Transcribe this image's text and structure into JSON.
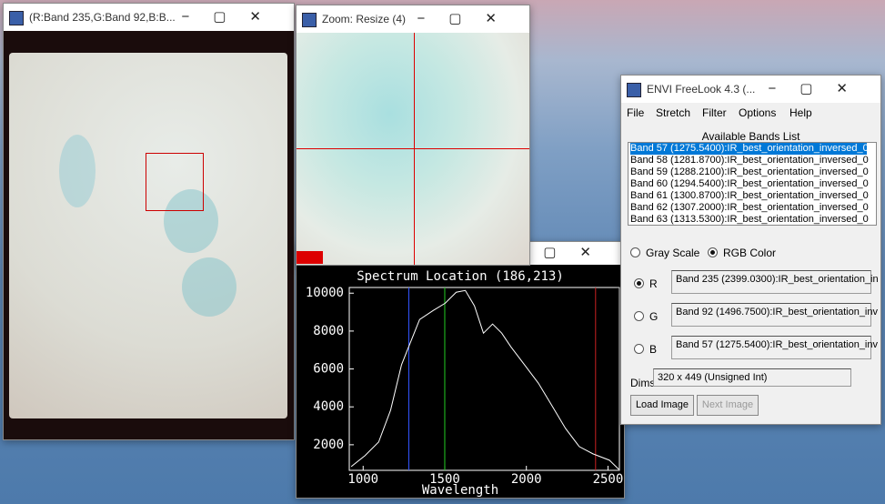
{
  "windows": {
    "image": {
      "title": "(R:Band 235,G:Band 92,B:B..."
    },
    "zoom": {
      "title": "Zoom: Resize (4)"
    },
    "freelook": {
      "title": "ENVI FreeLook 4.3 (...",
      "menu": [
        "File",
        "Stretch",
        "Filter",
        "Options",
        "Help"
      ],
      "bands_list_label": "Available Bands List",
      "bands": [
        "Band 57 (1275.5400):IR_best_orientation_inversed_0",
        "Band 58 (1281.8700):IR_best_orientation_inversed_0",
        "Band 59 (1288.2100):IR_best_orientation_inversed_0",
        "Band 60 (1294.5400):IR_best_orientation_inversed_0",
        "Band 61 (1300.8700):IR_best_orientation_inversed_0",
        "Band 62 (1307.2000):IR_best_orientation_inversed_0",
        "Band 63 (1313.5300):IR_best_orientation_inversed_0"
      ],
      "modes": [
        "Gray Scale",
        "RGB Color"
      ],
      "channels": [
        {
          "label": "R",
          "band": "Band 235 (2399.0300):IR_best_orientation_in"
        },
        {
          "label": "G",
          "band": "Band 92 (1496.7500):IR_best_orientation_inv"
        },
        {
          "label": "B",
          "band": "Band 57 (1275.5400):IR_best_orientation_inv"
        }
      ],
      "dims_label": "Dims",
      "dims": "320 x 449 (Unsigned Int)",
      "buttons": [
        "Load Image",
        "Next Image"
      ]
    }
  },
  "chart_data": {
    "type": "line",
    "title": "Spectrum Location (186,213)",
    "x_label": "Wavelength",
    "color": "#ffffff",
    "x": [
      927,
      1011,
      1095,
      1168,
      1235,
      1279,
      1346,
      1430,
      1503,
      1570,
      1626,
      1682,
      1737,
      1793,
      1849,
      1905,
      1989,
      2073,
      2157,
      2240,
      2324,
      2408,
      2509,
      2566
    ],
    "y": [
      850,
      1425,
      2144,
      3820,
      6215,
      7173,
      8610,
      9090,
      9470,
      10047,
      10143,
      9330,
      7890,
      8370,
      7890,
      7170,
      6215,
      5257,
      4060,
      2860,
      1904,
      1521,
      1185,
      706
    ],
    "xlim": [
      915,
      2570
    ],
    "ylim": [
      650,
      10300
    ],
    "xticks": [
      1000,
      1500,
      2000,
      2500
    ],
    "yticks": [
      2000,
      4000,
      6000,
      8000,
      10000
    ],
    "markers": [
      {
        "x": 1280,
        "color": "#3355ff"
      },
      {
        "x": 1500,
        "color": "#22cc22"
      },
      {
        "x": 2424,
        "color": "#cc2222"
      }
    ]
  }
}
